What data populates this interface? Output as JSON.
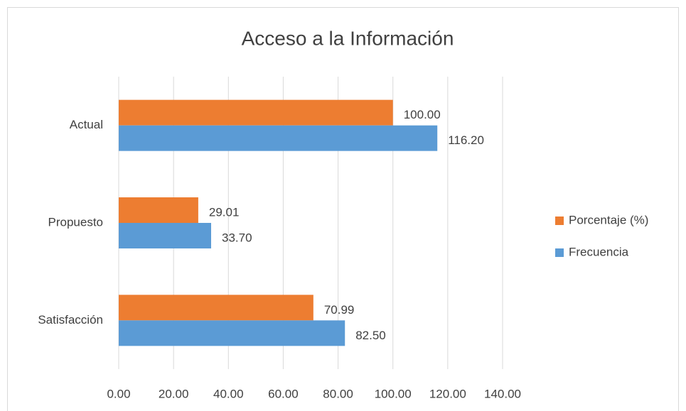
{
  "chart_data": {
    "type": "bar",
    "orientation": "horizontal",
    "title": "Acceso a la Información",
    "categories": [
      "Actual",
      "Propuesto",
      "Satisfacción"
    ],
    "series": [
      {
        "name": "Porcentaje (%)",
        "color": "#ed7d31",
        "values": [
          100.0,
          29.01,
          70.99
        ],
        "value_labels": [
          "100.00",
          "29.01",
          "70.99"
        ]
      },
      {
        "name": "Frecuencia",
        "color": "#5b9bd5",
        "values": [
          116.2,
          33.7,
          82.5
        ],
        "value_labels": [
          "116.20",
          "33.70",
          "82.50"
        ]
      }
    ],
    "xlim": [
      0,
      140
    ],
    "xticks": [
      {
        "value": 0,
        "label": "0.00"
      },
      {
        "value": 20,
        "label": "20.00"
      },
      {
        "value": 40,
        "label": "40.00"
      },
      {
        "value": 60,
        "label": "60.00"
      },
      {
        "value": 80,
        "label": "80.00"
      },
      {
        "value": 100,
        "label": "100.00"
      },
      {
        "value": 120,
        "label": "120.00"
      },
      {
        "value": 140,
        "label": "140.00"
      }
    ],
    "grid": true,
    "legend": "right"
  }
}
